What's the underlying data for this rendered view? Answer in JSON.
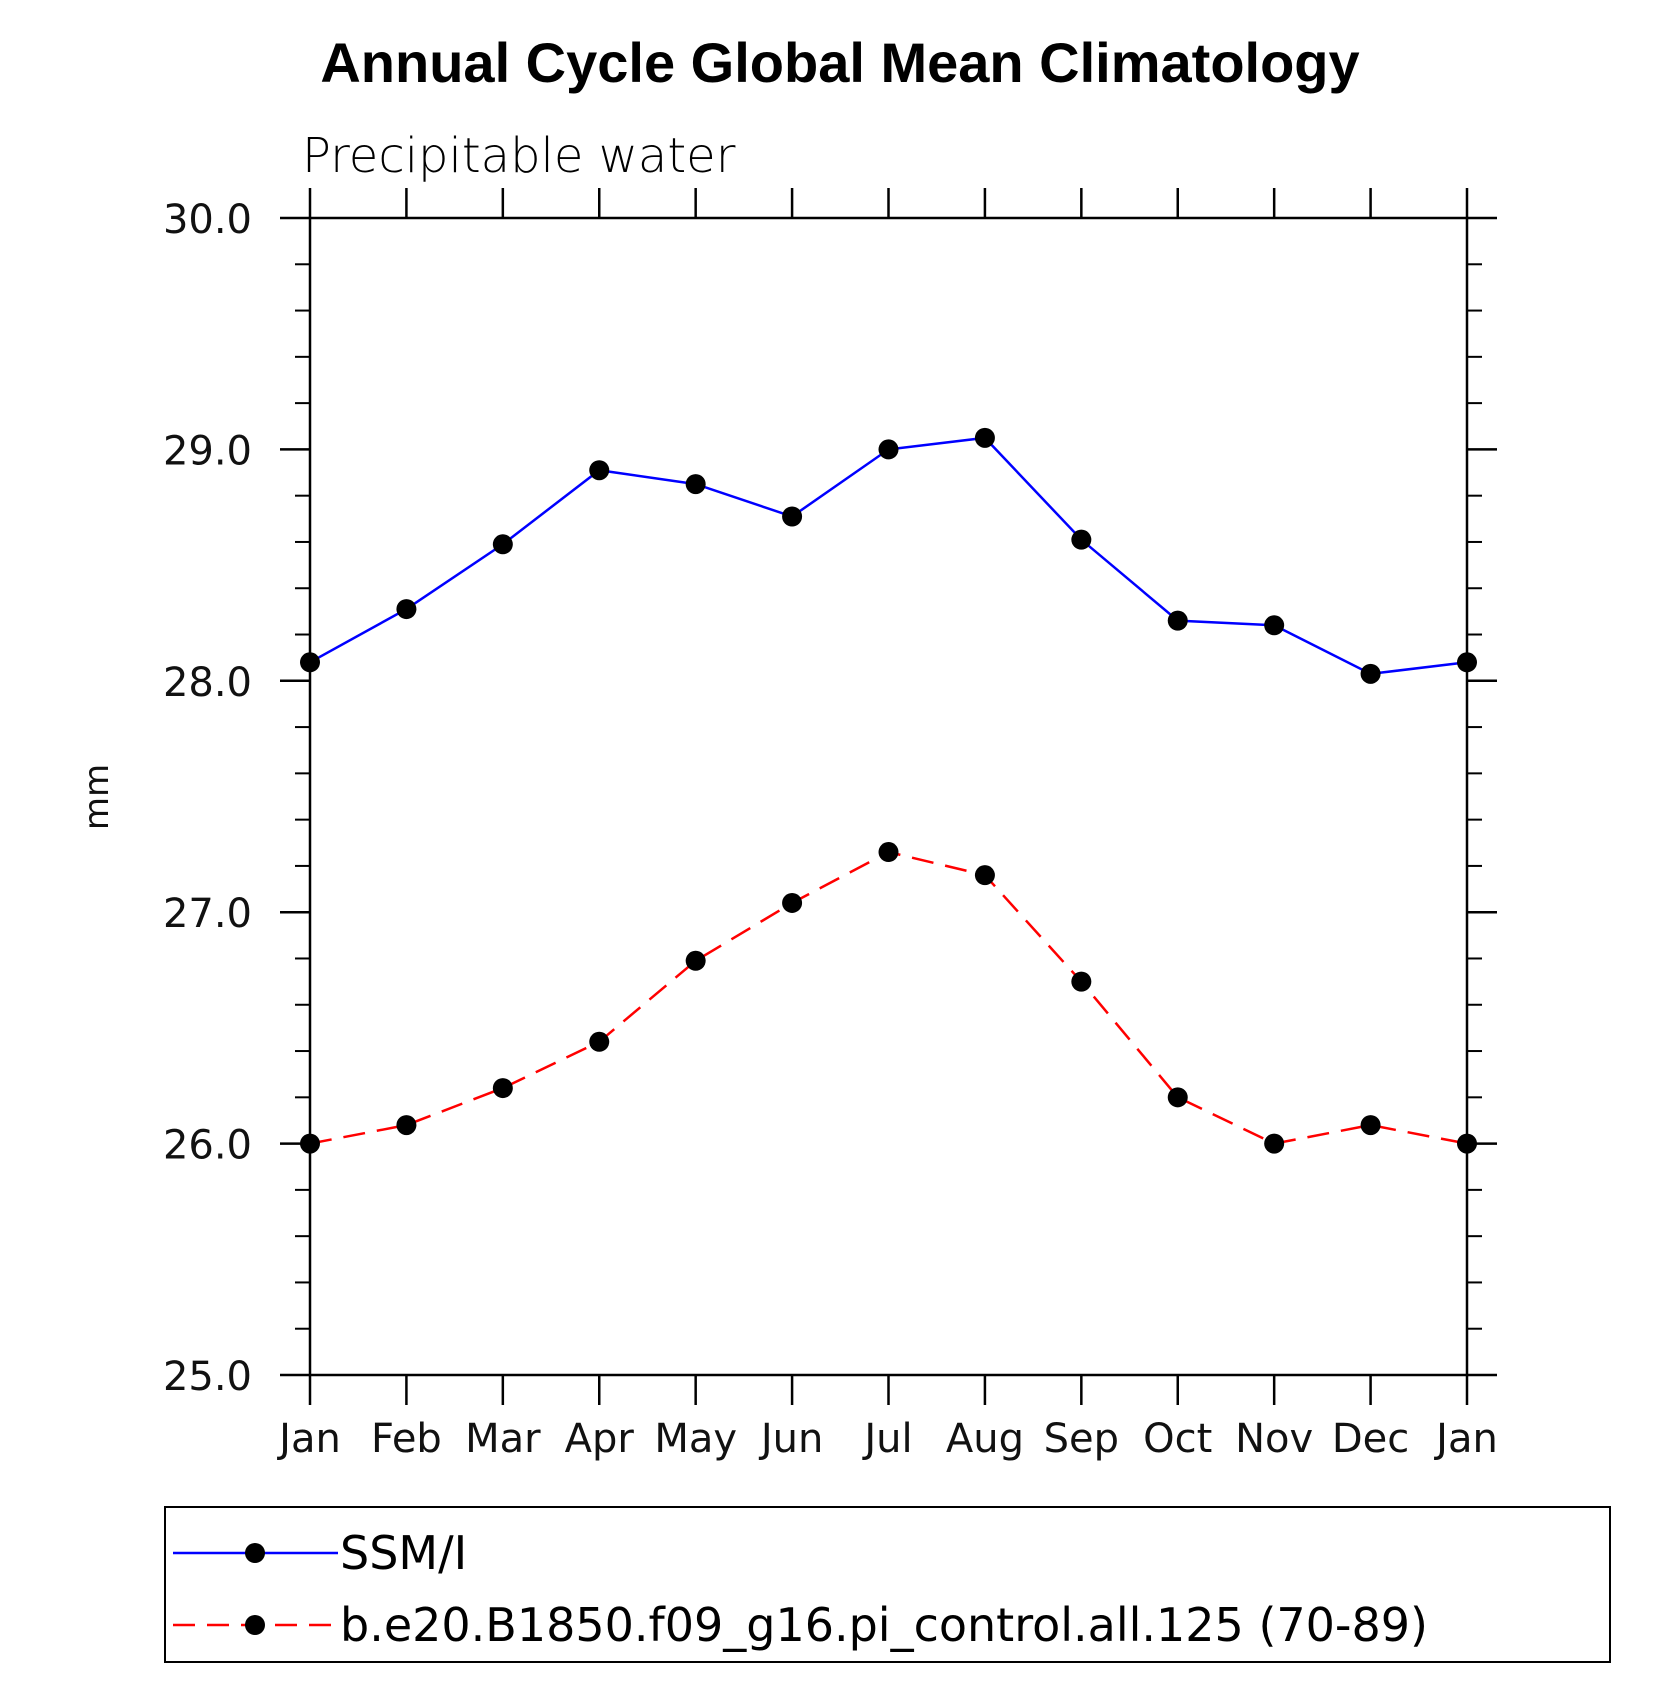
{
  "chart_data": {
    "type": "line",
    "title": "Annual Cycle Global Mean Climatology",
    "subtitle": "Precipitable water",
    "ylabel": "mm",
    "xlabel": "",
    "categories": [
      "Jan",
      "Feb",
      "Mar",
      "Apr",
      "May",
      "Jun",
      "Jul",
      "Aug",
      "Sep",
      "Oct",
      "Nov",
      "Dec",
      "Jan"
    ],
    "ylim": [
      25.0,
      30.0
    ],
    "yticks": [
      "25.0",
      "26.0",
      "27.0",
      "28.0",
      "29.0",
      "30.0"
    ],
    "grid": false,
    "legend_position": "bottom",
    "series": [
      {
        "name": "SSM/I",
        "color": "#0000ff",
        "line_style": "solid",
        "marker": "filled-circle",
        "values": [
          28.08,
          28.31,
          28.59,
          28.91,
          28.85,
          28.71,
          29.0,
          29.05,
          28.61,
          28.26,
          28.24,
          28.03,
          28.08
        ]
      },
      {
        "name": "b.e20.B1850.f09_g16.pi_control.all.125 (70-89)",
        "color": "#ff0000",
        "line_style": "dashed",
        "marker": "filled-circle",
        "values": [
          26.0,
          26.08,
          26.24,
          26.44,
          26.79,
          27.04,
          27.26,
          27.16,
          26.7,
          26.2,
          26.0,
          26.08,
          26.0
        ]
      }
    ]
  }
}
